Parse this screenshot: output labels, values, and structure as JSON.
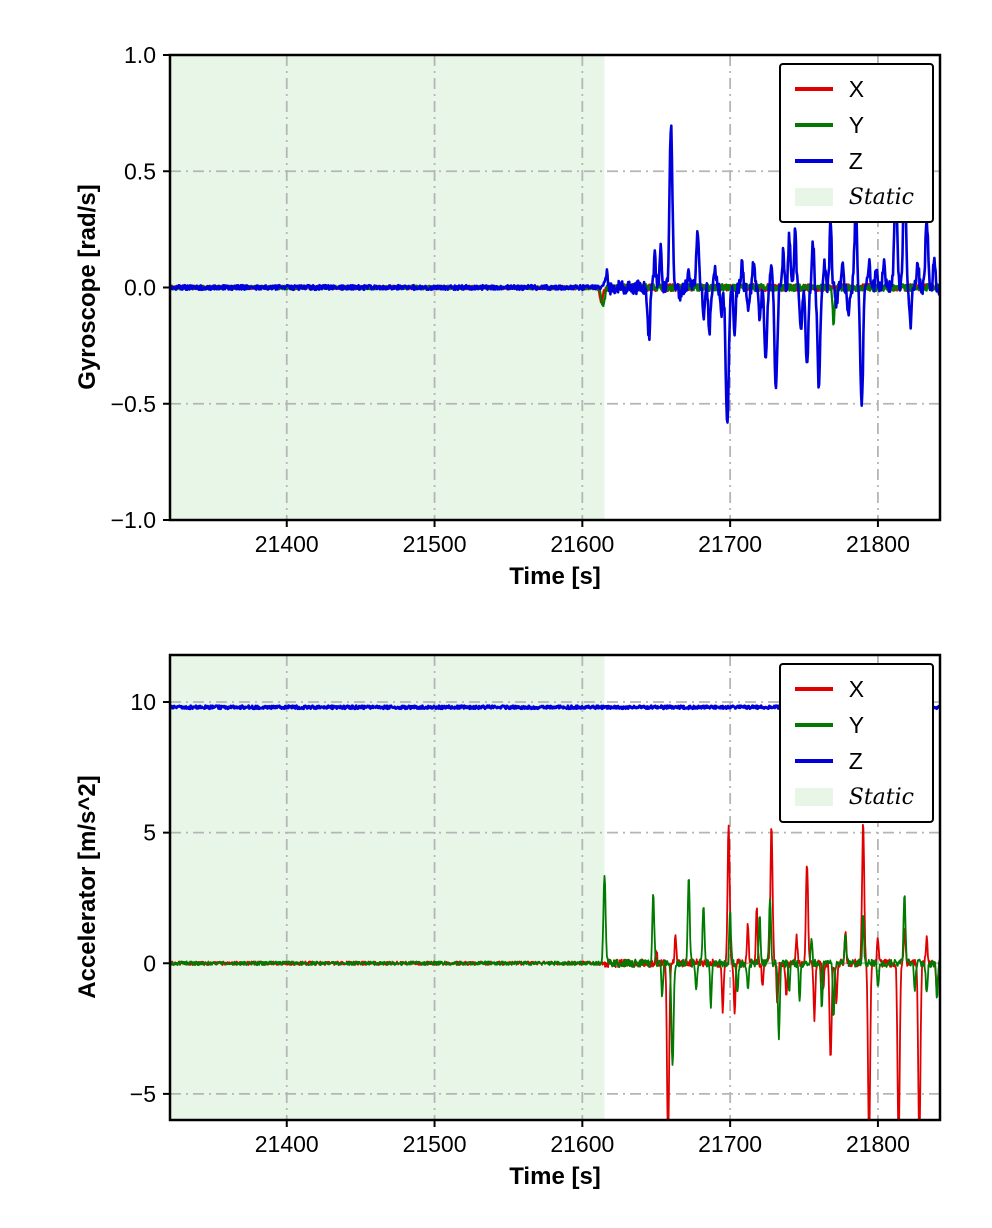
{
  "page": {
    "background": "#ffffff"
  },
  "chart_data": [
    {
      "type": "line",
      "title": "",
      "xlabel": "Time [s]",
      "ylabel": "Gyroscope [rad/s]",
      "xlim": [
        21321,
        21842
      ],
      "ylim": [
        -1.0,
        1.0
      ],
      "xticks": [
        21400,
        21500,
        21600,
        21700,
        21800
      ],
      "yticks": [
        1.0,
        0.5,
        0.0,
        -0.5,
        -1.0
      ],
      "ytick_decimals": 1,
      "grid": true,
      "grid_style": "dash-dot",
      "legend_position": "upper right",
      "legend_entries": [
        "X",
        "Y",
        "Z",
        "Static"
      ],
      "static_region": {
        "start": 21321,
        "end": 21615,
        "label": "Static",
        "color": "#e8f6e8"
      },
      "series": [
        {
          "name": "X",
          "color": "#e00000",
          "baseline": 0,
          "noise_static": 0.008,
          "noise_dynamic": 0.015,
          "width": 2.2,
          "spikes": [
            [
              21613,
              -0.06,
              1.5
            ]
          ]
        },
        {
          "name": "Y",
          "color": "#007a00",
          "baseline": 0,
          "noise_static": 0.008,
          "noise_dynamic": 0.015,
          "width": 2.2,
          "spikes": [
            [
              21614,
              -0.08,
              1.5
            ],
            [
              21770,
              -0.15,
              1.0
            ]
          ]
        },
        {
          "name": "Z",
          "color": "#0000dd",
          "baseline": 0,
          "noise_static": 0.01,
          "noise_dynamic": 0.03,
          "width": 2.6,
          "spikes": [
            [
              21616,
              0.07,
              1.2
            ],
            [
              21645,
              -0.22,
              1.2
            ],
            [
              21649,
              0.14,
              1.0
            ],
            [
              21653,
              0.18,
              1.0
            ],
            [
              21660,
              0.7,
              1.3
            ],
            [
              21666,
              -0.06,
              1.0
            ],
            [
              21672,
              0.06,
              1.0
            ],
            [
              21678,
              0.22,
              1.2
            ],
            [
              21682,
              -0.12,
              1.0
            ],
            [
              21686,
              -0.2,
              1.0
            ],
            [
              21690,
              0.08,
              1.0
            ],
            [
              21694,
              -0.1,
              1.0
            ],
            [
              21698,
              -0.6,
              1.4
            ],
            [
              21703,
              -0.18,
              1.0
            ],
            [
              21708,
              0.1,
              1.0
            ],
            [
              21712,
              -0.1,
              1.0
            ],
            [
              21716,
              0.12,
              1.0
            ],
            [
              21720,
              -0.15,
              1.0
            ],
            [
              21724,
              -0.3,
              1.2
            ],
            [
              21728,
              0.1,
              1.0
            ],
            [
              21731,
              -0.45,
              1.3
            ],
            [
              21736,
              0.15,
              1.0
            ],
            [
              21740,
              0.22,
              1.0
            ],
            [
              21744,
              0.26,
              1.0
            ],
            [
              21748,
              -0.2,
              1.0
            ],
            [
              21752,
              -0.35,
              1.2
            ],
            [
              21756,
              0.2,
              1.0
            ],
            [
              21760,
              -0.42,
              1.3
            ],
            [
              21764,
              0.1,
              1.0
            ],
            [
              21768,
              0.3,
              1.0
            ],
            [
              21772,
              -0.08,
              1.0
            ],
            [
              21776,
              0.12,
              1.0
            ],
            [
              21780,
              -0.1,
              1.0
            ],
            [
              21785,
              0.35,
              1.2
            ],
            [
              21789,
              -0.5,
              1.3
            ],
            [
              21794,
              0.1,
              1.0
            ],
            [
              21799,
              0.08,
              1.0
            ],
            [
              21804,
              0.12,
              1.0
            ],
            [
              21812,
              0.46,
              1.3
            ],
            [
              21818,
              0.5,
              1.3
            ],
            [
              21822,
              -0.16,
              1.0
            ],
            [
              21827,
              0.1,
              1.0
            ],
            [
              21833,
              0.3,
              1.2
            ],
            [
              21838,
              0.12,
              1.0
            ]
          ]
        }
      ]
    },
    {
      "type": "line",
      "title": "",
      "xlabel": "Time [s]",
      "ylabel": "Accelerator [m/s^2]",
      "xlim": [
        21321,
        21842
      ],
      "ylim": [
        -6.0,
        11.8
      ],
      "xticks": [
        21400,
        21500,
        21600,
        21700,
        21800
      ],
      "yticks": [
        10,
        5,
        0,
        -5
      ],
      "ytick_decimals": 0,
      "grid": true,
      "grid_style": "dash-dot",
      "legend_position": "upper right",
      "legend_entries": [
        "X",
        "Y",
        "Z",
        "Static"
      ],
      "static_region": {
        "start": 21321,
        "end": 21615,
        "label": "Static",
        "color": "#e8f6e8"
      },
      "series": [
        {
          "name": "X",
          "color": "#e00000",
          "baseline": 0,
          "noise_static": 0.07,
          "noise_dynamic": 0.15,
          "width": 1.8,
          "spikes": [
            [
              21650,
              0.5,
              0.8
            ],
            [
              21658,
              -7.0,
              1.0
            ],
            [
              21663,
              1.0,
              0.8
            ],
            [
              21695,
              -1.8,
              0.8
            ],
            [
              21699,
              5.4,
              1.0
            ],
            [
              21703,
              -2.0,
              0.8
            ],
            [
              21712,
              1.5,
              0.8
            ],
            [
              21718,
              2.2,
              0.8
            ],
            [
              21722,
              -1.0,
              0.8
            ],
            [
              21728,
              5.2,
              1.0
            ],
            [
              21732,
              -1.6,
              0.8
            ],
            [
              21738,
              -1.2,
              0.8
            ],
            [
              21745,
              1.0,
              0.8
            ],
            [
              21752,
              3.8,
              1.0
            ],
            [
              21757,
              -2.2,
              0.8
            ],
            [
              21763,
              -1.0,
              0.8
            ],
            [
              21768,
              -3.6,
              1.0
            ],
            [
              21772,
              -1.5,
              0.8
            ],
            [
              21778,
              1.2,
              0.8
            ],
            [
              21790,
              5.5,
              1.0
            ],
            [
              21794,
              -7.0,
              1.0
            ],
            [
              21800,
              1.0,
              0.8
            ],
            [
              21814,
              -7.0,
              1.0
            ],
            [
              21818,
              1.5,
              0.8
            ],
            [
              21828,
              -7.0,
              1.0
            ],
            [
              21833,
              1.0,
              0.8
            ],
            [
              21840,
              -1.2,
              0.8
            ]
          ]
        },
        {
          "name": "Y",
          "color": "#007a00",
          "baseline": 0,
          "noise_static": 0.07,
          "noise_dynamic": 0.15,
          "width": 1.8,
          "spikes": [
            [
              21615,
              3.4,
              1.0
            ],
            [
              21648,
              2.6,
              0.9
            ],
            [
              21654,
              -1.2,
              0.8
            ],
            [
              21661,
              -4.0,
              1.0
            ],
            [
              21672,
              3.4,
              0.9
            ],
            [
              21677,
              -1.0,
              0.8
            ],
            [
              21682,
              2.3,
              0.9
            ],
            [
              21687,
              -1.6,
              0.8
            ],
            [
              21700,
              2.0,
              0.8
            ],
            [
              21705,
              -1.2,
              0.8
            ],
            [
              21712,
              -1.0,
              0.8
            ],
            [
              21720,
              1.8,
              0.8
            ],
            [
              21727,
              2.4,
              0.9
            ],
            [
              21733,
              -2.8,
              0.9
            ],
            [
              21740,
              -1.0,
              0.8
            ],
            [
              21747,
              -1.3,
              0.8
            ],
            [
              21755,
              1.0,
              0.8
            ],
            [
              21762,
              -1.6,
              0.8
            ],
            [
              21770,
              -2.0,
              0.8
            ],
            [
              21778,
              1.0,
              0.8
            ],
            [
              21790,
              1.8,
              0.8
            ],
            [
              21800,
              -1.0,
              0.8
            ],
            [
              21818,
              2.7,
              0.9
            ],
            [
              21825,
              -1.0,
              0.8
            ],
            [
              21833,
              -1.2,
              0.8
            ],
            [
              21840,
              -1.3,
              0.8
            ]
          ]
        },
        {
          "name": "Z",
          "color": "#0000dd",
          "baseline": 9.8,
          "noise_static": 0.06,
          "noise_dynamic": 0.06,
          "width": 2.8,
          "spikes": []
        }
      ]
    }
  ]
}
